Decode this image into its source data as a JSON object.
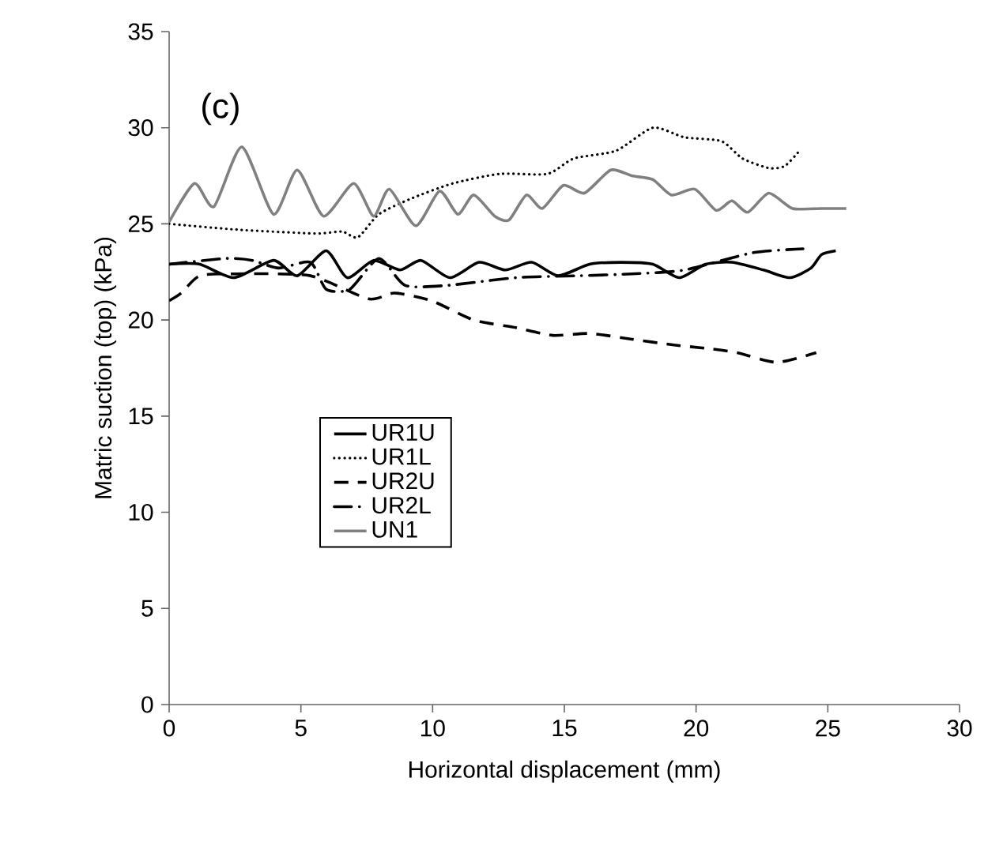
{
  "chart_data": {
    "type": "line",
    "xlabel": "Horizontal displacement (mm)",
    "ylabel": "Matric suction (top)  (kPa)",
    "annotations": [
      "(c)"
    ],
    "xlim": [
      0,
      30
    ],
    "xticks": [
      0,
      5,
      10,
      15,
      20,
      25,
      30
    ],
    "ylim": [
      0,
      35
    ],
    "yticks": [
      0,
      5,
      10,
      15,
      20,
      25,
      30,
      35
    ],
    "grid": false,
    "legend": "center left",
    "marker": "none",
    "series": [
      {
        "name": "UR1U",
        "color": "#000000",
        "line_style": "solid",
        "x": [
          0,
          1.16,
          2.46,
          3.96,
          4.86,
          5.96,
          6.76,
          7.76,
          8.76,
          9.56,
          10.66,
          11.76,
          12.76,
          13.76,
          14.76,
          15.96,
          17.16,
          18.36,
          19.36,
          20.36,
          21.36,
          22.56,
          23.56,
          24.36,
          24.76,
          25.3
        ],
        "values": [
          22.9,
          22.9,
          22.2,
          23.1,
          22.3,
          23.6,
          22.2,
          23.1,
          22.6,
          23.1,
          22.2,
          23.0,
          22.6,
          23.0,
          22.3,
          22.9,
          23.0,
          22.9,
          22.2,
          22.9,
          23.0,
          22.6,
          22.2,
          22.7,
          23.4,
          23.6
        ]
      },
      {
        "name": "UR1L",
        "color": "#000000",
        "line_style": "dotted",
        "x": [
          0,
          2.56,
          5.56,
          6.56,
          7.16,
          7.96,
          9.16,
          10.76,
          12.56,
          14.36,
          15.36,
          16.96,
          18.36,
          19.56,
          20.96,
          21.76,
          22.76,
          23.36,
          23.86
        ],
        "values": [
          25.0,
          24.7,
          24.5,
          24.6,
          24.3,
          25.5,
          26.3,
          27.1,
          27.6,
          27.6,
          28.4,
          28.8,
          30.0,
          29.5,
          29.3,
          28.4,
          27.9,
          28.0,
          28.7
        ]
      },
      {
        "name": "UR2U",
        "color": "#000000",
        "line_style": "dashed",
        "x": [
          0,
          0.46,
          1.16,
          2.56,
          5.36,
          7.56,
          8.56,
          9.96,
          11.56,
          13.16,
          14.56,
          15.96,
          17.56,
          19.16,
          20.56,
          21.56,
          23.06,
          24.56
        ],
        "values": [
          21.0,
          21.4,
          22.3,
          22.4,
          22.3,
          21.1,
          21.4,
          21.0,
          20.0,
          19.6,
          19.2,
          19.3,
          19.0,
          18.7,
          18.5,
          18.3,
          17.8,
          18.3
        ]
      },
      {
        "name": "UR2L",
        "color": "#000000",
        "line_style": "dashdot",
        "x": [
          0,
          2.16,
          3.16,
          4.16,
          5.36,
          5.96,
          6.86,
          7.96,
          8.96,
          10.56,
          13.16,
          15.56,
          17.56,
          19.56,
          22.16,
          24.06
        ],
        "values": [
          22.9,
          23.2,
          23.1,
          22.7,
          23.0,
          21.6,
          21.6,
          23.2,
          21.8,
          21.8,
          22.2,
          22.3,
          22.4,
          22.6,
          23.5,
          23.7
        ]
      },
      {
        "name": "UN1",
        "color": "#808080",
        "line_style": "solid",
        "x": [
          0,
          0.96,
          1.7,
          2.76,
          3.96,
          4.86,
          5.86,
          7.0,
          7.76,
          8.36,
          9.36,
          10.26,
          10.96,
          11.56,
          12.36,
          12.9,
          13.56,
          14.16,
          14.96,
          15.76,
          16.76,
          17.56,
          18.36,
          19.06,
          19.96,
          20.76,
          21.36,
          21.96,
          22.76,
          23.66,
          24.76,
          25.7
        ],
        "values": [
          25.1,
          27.1,
          25.9,
          29.0,
          25.5,
          27.8,
          25.4,
          27.1,
          25.4,
          26.8,
          24.9,
          26.7,
          25.5,
          26.5,
          25.4,
          25.2,
          26.5,
          25.8,
          27.0,
          26.6,
          27.8,
          27.5,
          27.3,
          26.5,
          26.8,
          25.7,
          26.2,
          25.6,
          26.6,
          25.8,
          25.8,
          25.8
        ]
      }
    ]
  }
}
